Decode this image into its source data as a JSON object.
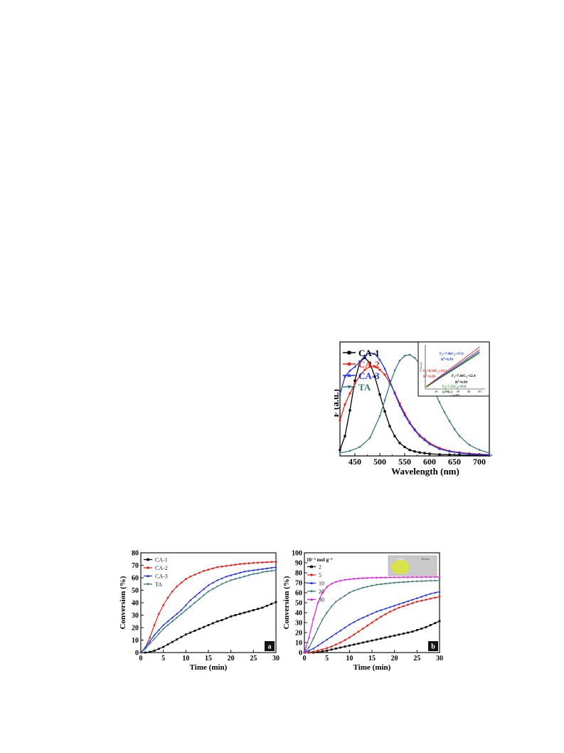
{
  "chart_data": [
    {
      "id": "fluorescence",
      "type": "line",
      "title": "",
      "xlabel": "Wavelength (nm)",
      "ylabel": "F (a.u.)",
      "xlim": [
        420,
        720
      ],
      "ylim": [
        0,
        1.15
      ],
      "xticks": [
        "450",
        "500",
        "550",
        "600",
        "650",
        "700"
      ],
      "legend_position": "top-left",
      "series": [
        {
          "name": "CA-1",
          "color": "#000000",
          "marker": "square",
          "x": [
            420,
            430,
            440,
            450,
            460,
            470,
            480,
            490,
            500,
            510,
            520,
            530,
            540,
            550,
            560,
            570,
            580,
            590,
            600,
            620,
            640,
            660,
            680,
            700,
            720
          ],
          "y": [
            0.06,
            0.2,
            0.46,
            0.76,
            0.95,
            0.99,
            0.94,
            0.8,
            0.62,
            0.45,
            0.3,
            0.2,
            0.13,
            0.09,
            0.06,
            0.045,
            0.035,
            0.028,
            0.022,
            0.015,
            0.012,
            0.01,
            0.008,
            0.007,
            0.006
          ]
        },
        {
          "name": "CA-2",
          "color": "#e3241b",
          "marker": "circle",
          "x": [
            420,
            430,
            440,
            450,
            460,
            470,
            480,
            490,
            500,
            510,
            520,
            530,
            540,
            550,
            560,
            570,
            580,
            590,
            600,
            620,
            640,
            660,
            680,
            700,
            720
          ],
          "y": [
            0.36,
            0.52,
            0.63,
            0.73,
            0.81,
            0.87,
            0.9,
            0.9,
            0.87,
            0.82,
            0.74,
            0.64,
            0.53,
            0.43,
            0.34,
            0.27,
            0.21,
            0.17,
            0.13,
            0.08,
            0.05,
            0.035,
            0.025,
            0.018,
            0.013
          ]
        },
        {
          "name": "CA-3",
          "color": "#1f2fe6",
          "marker": "triangle",
          "x": [
            420,
            430,
            440,
            450,
            460,
            470,
            480,
            490,
            500,
            510,
            520,
            530,
            540,
            550,
            560,
            570,
            580,
            590,
            600,
            620,
            640,
            660,
            680,
            700,
            720
          ],
          "y": [
            0.62,
            0.8,
            0.86,
            0.9,
            0.95,
            1.01,
            1.04,
            1.03,
            0.97,
            0.88,
            0.76,
            0.63,
            0.51,
            0.41,
            0.33,
            0.26,
            0.2,
            0.16,
            0.12,
            0.07,
            0.045,
            0.03,
            0.02,
            0.014,
            0.01
          ]
        },
        {
          "name": "TA",
          "color": "#3b7878",
          "marker": "triangle-down",
          "x": [
            420,
            440,
            460,
            480,
            500,
            510,
            520,
            530,
            540,
            550,
            560,
            570,
            580,
            590,
            600,
            610,
            620,
            630,
            640,
            650,
            660,
            680,
            700,
            720
          ],
          "y": [
            0.03,
            0.05,
            0.09,
            0.18,
            0.4,
            0.56,
            0.72,
            0.86,
            0.96,
            1.01,
            1.02,
            0.99,
            0.93,
            0.85,
            0.75,
            0.65,
            0.54,
            0.44,
            0.35,
            0.27,
            0.2,
            0.11,
            0.06,
            0.03
          ]
        }
      ],
      "inset": {
        "xlabel": "c (μM)",
        "ylabel": "F (a.u.)",
        "xticks": [
          "10",
          "20",
          "30",
          "40",
          "50"
        ],
        "annotations": [
          {
            "text": "F3=7.96C3+17.9",
            "color": "#1f2fe6"
          },
          {
            "text": "R2=0.99",
            "color": "#1f2fe6"
          },
          {
            "text": "F2=8.54C2+19.1",
            "color": "#e3241b"
          },
          {
            "text": "R2=0.99",
            "color": "#e3241b"
          },
          {
            "text": "F1=7.66C1+12.4",
            "color": "#000000"
          },
          {
            "text": "R2=0.99",
            "color": "#000000"
          },
          {
            "text": "F4=7.25C4+16.6",
            "color": "#2e8b2e"
          },
          {
            "text": "R2=0.9",
            "color": "#2e8b2e"
          }
        ],
        "series": [
          {
            "name": "CA-3",
            "color": "#1f2fe6",
            "x": [
              1,
              50
            ],
            "y": [
              25.9,
              415.9
            ]
          },
          {
            "name": "CA-2",
            "color": "#e3241b",
            "x": [
              1,
              50
            ],
            "y": [
              27.6,
              446.1
            ]
          },
          {
            "name": "CA-1",
            "color": "#000000",
            "x": [
              1,
              50
            ],
            "y": [
              20.1,
              395.4
            ]
          },
          {
            "name": "TA",
            "color": "#2e8b2e",
            "x": [
              1,
              50
            ],
            "y": [
              23.9,
              379.1
            ]
          }
        ],
        "xlim": [
          0,
          55
        ],
        "ylim": [
          0,
          470
        ]
      }
    },
    {
      "id": "conversion-a",
      "type": "line",
      "title": "",
      "panel_label": "a",
      "xlabel": "Time (min)",
      "ylabel": "Conversion (%)",
      "xlim": [
        0,
        30
      ],
      "ylim": [
        0,
        80
      ],
      "xticks": [
        0,
        5,
        10,
        15,
        20,
        25,
        30
      ],
      "yticks": [
        0,
        10,
        20,
        30,
        40,
        50,
        60,
        70,
        80
      ],
      "legend_position": "top-left",
      "series": [
        {
          "name": "CA-1",
          "color": "#000000",
          "marker": "square",
          "x": [
            0,
            1,
            2,
            3,
            4,
            5,
            6,
            7,
            8,
            9,
            10,
            11,
            12,
            13,
            14,
            15,
            16,
            17,
            18,
            19,
            20,
            21,
            22,
            23,
            24,
            25,
            26,
            27,
            28,
            29,
            30
          ],
          "y": [
            0,
            0,
            0.5,
            1.5,
            3,
            4.5,
            6.5,
            8.5,
            10.5,
            12.5,
            14.5,
            16,
            17.5,
            19,
            20.5,
            22,
            23.5,
            25,
            26,
            27.5,
            29,
            30,
            31,
            32,
            33,
            34,
            35,
            36,
            37.5,
            39,
            40.5
          ]
        },
        {
          "name": "CA-2",
          "color": "#e3241b",
          "marker": "circle",
          "x": [
            0,
            1,
            2,
            3,
            4,
            5,
            6,
            7,
            8,
            9,
            10,
            11,
            12,
            13,
            14,
            15,
            16,
            17,
            18,
            19,
            20,
            21,
            22,
            23,
            24,
            25,
            26,
            27,
            28,
            29,
            30
          ],
          "y": [
            0,
            4,
            12,
            22,
            31,
            38,
            44,
            49,
            53,
            56,
            59,
            61,
            62.5,
            64,
            65.5,
            66.5,
            67.5,
            68.5,
            69,
            69.5,
            70,
            70.5,
            71,
            71.3,
            71.6,
            71.9,
            72.1,
            72.3,
            72.5,
            72.7,
            72.8
          ]
        },
        {
          "name": "CA-3",
          "color": "#1f2fe6",
          "marker": "triangle",
          "x": [
            0,
            1,
            2,
            3,
            4,
            5,
            6,
            7,
            8,
            9,
            10,
            11,
            12,
            13,
            14,
            15,
            16,
            17,
            18,
            19,
            20,
            21,
            22,
            23,
            24,
            25,
            26,
            27,
            28,
            29,
            30
          ],
          "y": [
            0,
            4,
            9,
            14,
            18,
            22,
            25,
            28,
            31,
            34,
            38,
            42,
            45,
            48,
            51,
            54,
            56,
            58,
            59.5,
            61,
            62,
            63,
            64,
            65,
            65.5,
            66,
            66.5,
            67,
            67.5,
            68,
            68.5
          ]
        },
        {
          "name": "TA",
          "color": "#3b7878",
          "marker": "triangle-down",
          "x": [
            0,
            1,
            2,
            3,
            4,
            5,
            6,
            7,
            8,
            9,
            10,
            11,
            12,
            13,
            14,
            15,
            16,
            17,
            18,
            19,
            20,
            21,
            22,
            23,
            24,
            25,
            26,
            27,
            28,
            29,
            30
          ],
          "y": [
            0,
            3,
            7,
            11,
            15,
            19,
            22,
            25,
            28,
            31,
            34,
            37,
            40,
            43,
            46,
            49,
            51,
            53,
            55,
            56.5,
            58,
            59,
            60,
            61,
            62,
            63,
            63.5,
            64.5,
            65,
            65.5,
            66
          ]
        }
      ]
    },
    {
      "id": "conversion-b",
      "type": "line",
      "title": "",
      "panel_label": "b",
      "legend_title": "10⁻⁵ mol g⁻¹",
      "xlabel": "Time (min)",
      "ylabel": "Conversion (%)",
      "xlim": [
        0,
        30
      ],
      "ylim": [
        0,
        100
      ],
      "xticks": [
        0,
        5,
        10,
        15,
        20,
        25,
        30
      ],
      "yticks": [
        0,
        10,
        20,
        30,
        40,
        50,
        60,
        70,
        80,
        90,
        100
      ],
      "legend_position": "top-left",
      "inset_photo_labels": [
        "0 min",
        "40 min"
      ],
      "series": [
        {
          "name": "2",
          "color": "#000000",
          "marker": "square",
          "x": [
            0,
            1,
            2,
            3,
            4,
            5,
            6,
            7,
            8,
            9,
            10,
            11,
            12,
            13,
            14,
            15,
            16,
            17,
            18,
            19,
            20,
            21,
            22,
            23,
            24,
            25,
            26,
            27,
            28,
            29,
            30
          ],
          "y": [
            0,
            0,
            0,
            0.5,
            1,
            2,
            3,
            4,
            5,
            6,
            7,
            8,
            9,
            10,
            11,
            12,
            13,
            14,
            15,
            16,
            17,
            18,
            19,
            20,
            21,
            22.5,
            24,
            25.5,
            27.5,
            29.5,
            31.5
          ]
        },
        {
          "name": "5",
          "color": "#e3241b",
          "marker": "circle",
          "x": [
            0,
            1,
            2,
            3,
            4,
            5,
            6,
            7,
            8,
            9,
            10,
            11,
            12,
            13,
            14,
            15,
            16,
            17,
            18,
            19,
            20,
            21,
            22,
            23,
            24,
            25,
            26,
            27,
            28,
            29,
            30
          ],
          "y": [
            0,
            0,
            1,
            2,
            3,
            4.5,
            6,
            8,
            10,
            12.5,
            15,
            18,
            21,
            24,
            27,
            30,
            33,
            36,
            38.5,
            41,
            43,
            45,
            46.5,
            48,
            49.5,
            51,
            52,
            53,
            54,
            55,
            56
          ]
        },
        {
          "name": "10",
          "color": "#1f2fe6",
          "marker": "triangle",
          "x": [
            0,
            1,
            2,
            3,
            4,
            5,
            6,
            7,
            8,
            9,
            10,
            11,
            12,
            13,
            14,
            15,
            16,
            17,
            18,
            19,
            20,
            21,
            22,
            23,
            24,
            25,
            26,
            27,
            28,
            29,
            30
          ],
          "y": [
            0,
            2,
            4,
            7,
            10,
            13,
            16,
            19,
            22,
            25,
            28,
            30.5,
            33,
            35,
            37,
            39,
            41,
            42.5,
            44,
            45.5,
            47,
            48.5,
            50,
            51.5,
            53,
            54.5,
            56,
            57.5,
            59,
            60,
            61
          ]
        },
        {
          "name": "20",
          "color": "#3b7878",
          "marker": "triangle-down",
          "x": [
            0,
            1,
            2,
            3,
            4,
            5,
            6,
            7,
            8,
            9,
            10,
            11,
            12,
            13,
            14,
            15,
            16,
            17,
            18,
            19,
            20,
            21,
            22,
            23,
            24,
            25,
            26,
            27,
            28,
            29,
            30
          ],
          "y": [
            0,
            5,
            14,
            24,
            33,
            40,
            46,
            51,
            54,
            57,
            60,
            62,
            63.5,
            65,
            66,
            67,
            68,
            68.5,
            69,
            69.5,
            70,
            70.3,
            70.6,
            70.9,
            71.2,
            71.4,
            71.6,
            71.8,
            72,
            72.1,
            72.2
          ]
        },
        {
          "name": "30",
          "color": "#e31ae3",
          "marker": "triangle",
          "x": [
            0,
            1,
            2,
            3,
            4,
            5,
            6,
            7,
            8,
            9,
            10,
            11,
            12,
            13,
            14,
            15,
            16,
            17,
            18,
            19,
            20,
            21,
            22,
            23,
            24,
            25,
            26,
            27,
            28,
            29,
            30
          ],
          "y": [
            0,
            15,
            34,
            50,
            60,
            66,
            69,
            71,
            72,
            73,
            73.5,
            74,
            74.3,
            74.6,
            74.8,
            75,
            75.1,
            75.2,
            75.3,
            75.4,
            75.5,
            75.5,
            75.6,
            75.6,
            75.7,
            75.7,
            75.7,
            75.8,
            75.8,
            75.8,
            75.8
          ]
        }
      ]
    }
  ]
}
